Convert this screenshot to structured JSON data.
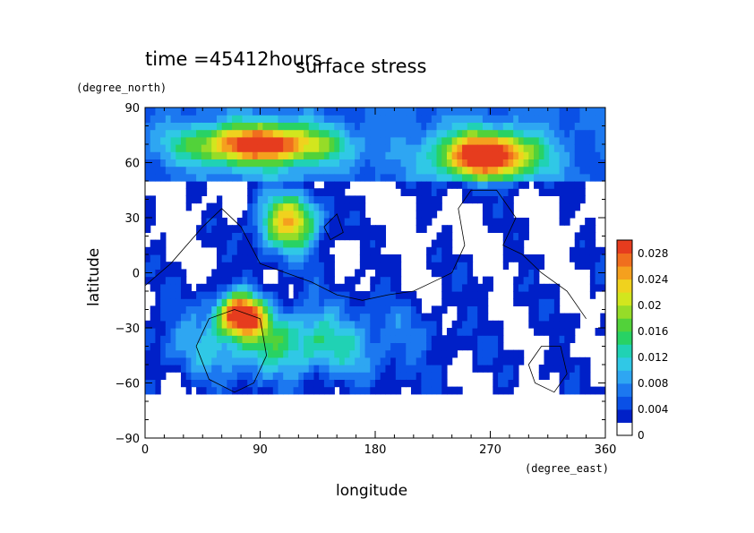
{
  "time_label": "time =45412hours",
  "chart_data": {
    "type": "heatmap",
    "title": "surface stress",
    "xlabel": "longitude",
    "ylabel": "latitude",
    "x_unit": "(degree_east)",
    "y_unit": "(degree_north)",
    "xlim": [
      0,
      360
    ],
    "ylim": [
      -90,
      90
    ],
    "x_ticks": [
      "0",
      "90",
      "180",
      "270",
      "360"
    ],
    "y_ticks": [
      "90",
      "60",
      "30",
      "0",
      "−30",
      "−60",
      "−90"
    ],
    "x_tick_values": [
      0,
      90,
      180,
      270,
      360
    ],
    "y_tick_values": [
      90,
      60,
      30,
      0,
      -30,
      -60,
      -90
    ],
    "colorbar": {
      "tick_labels": [
        "0.028",
        "0.024",
        "0.02",
        "0.016",
        "0.012",
        "0.008",
        "0.004",
        "0"
      ],
      "levels": [
        0,
        0.002,
        0.004,
        0.006,
        0.008,
        0.01,
        0.012,
        0.014,
        0.016,
        0.018,
        0.02,
        0.022,
        0.024,
        0.026,
        0.028,
        0.03
      ],
      "colors": [
        "#ffffff",
        "#0020c8",
        "#0a50e6",
        "#1c78f0",
        "#2ea6f2",
        "#30c8e6",
        "#20d2b4",
        "#28d264",
        "#52d23a",
        "#96dc28",
        "#d2e61e",
        "#f0d21e",
        "#f5a01e",
        "#f06e1e",
        "#e63c1e"
      ]
    },
    "features": [
      {
        "name": "high stress band north",
        "lon": [
          30,
          150
        ],
        "lat": [
          58,
          82
        ],
        "peak": 0.026
      },
      {
        "name": "high stress band north-east",
        "lon": [
          225,
          310
        ],
        "lat": [
          50,
          78
        ],
        "peak": 0.028
      },
      {
        "name": "local maximum",
        "lon": [
          85,
          140
        ],
        "lat": [
          10,
          45
        ],
        "peak": 0.022
      },
      {
        "name": "local maximum",
        "lon": [
          55,
          95
        ],
        "lat": [
          -35,
          -10
        ],
        "peak": 0.026
      },
      {
        "name": "southern belt",
        "lon": [
          10,
          210
        ],
        "lat": [
          -60,
          -15
        ],
        "peak": 0.012
      }
    ]
  }
}
